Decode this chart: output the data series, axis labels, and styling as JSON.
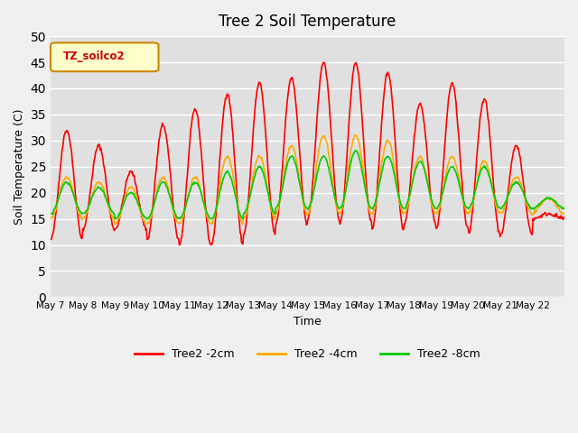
{
  "title": "Tree 2 Soil Temperature",
  "xlabel": "Time",
  "ylabel": "Soil Temperature (C)",
  "ylim": [
    0,
    50
  ],
  "yticks": [
    0,
    5,
    10,
    15,
    20,
    25,
    30,
    35,
    40,
    45,
    50
  ],
  "bg_color": "#e0e0e0",
  "fig_bg_color": "#f0f0f0",
  "legend_label": "TZ_soilco2",
  "series_labels": [
    "Tree2 -2cm",
    "Tree2 -4cm",
    "Tree2 -8cm"
  ],
  "series_colors": [
    "#ff0000",
    "#ffaa00",
    "#00cc00"
  ],
  "x_tick_labels": [
    "May 7",
    "May 8",
    "May 9",
    "May 10",
    "May 11",
    "May 12",
    "May 13",
    "May 14",
    "May 15",
    "May 16",
    "May 17",
    "May 18",
    "May 19",
    "May 20",
    "May 21",
    "May 22"
  ],
  "n_days": 16,
  "points_per_day": 48,
  "t2cm_peaks": [
    32,
    29,
    24,
    33,
    36,
    39,
    41,
    42,
    45,
    45,
    43,
    37,
    41,
    38,
    29,
    16
  ],
  "t2cm_mins": [
    11,
    13,
    13,
    11,
    10,
    10,
    12,
    14,
    15,
    14,
    13,
    14,
    13,
    12,
    12,
    15
  ],
  "t4cm_peaks": [
    23,
    22,
    21,
    23,
    23,
    27,
    27,
    29,
    31,
    31,
    30,
    27,
    27,
    26,
    23,
    19
  ],
  "t4cm_mins": [
    15,
    15,
    14,
    14,
    14,
    14,
    15,
    16,
    16,
    16,
    16,
    16,
    16,
    16,
    16,
    16
  ],
  "t8cm_peaks": [
    22,
    21,
    20,
    22,
    22,
    24,
    25,
    27,
    27,
    28,
    27,
    26,
    25,
    25,
    22,
    19
  ],
  "t8cm_mins": [
    16,
    16,
    15,
    15,
    15,
    15,
    16,
    17,
    17,
    17,
    17,
    17,
    17,
    17,
    17,
    17
  ]
}
